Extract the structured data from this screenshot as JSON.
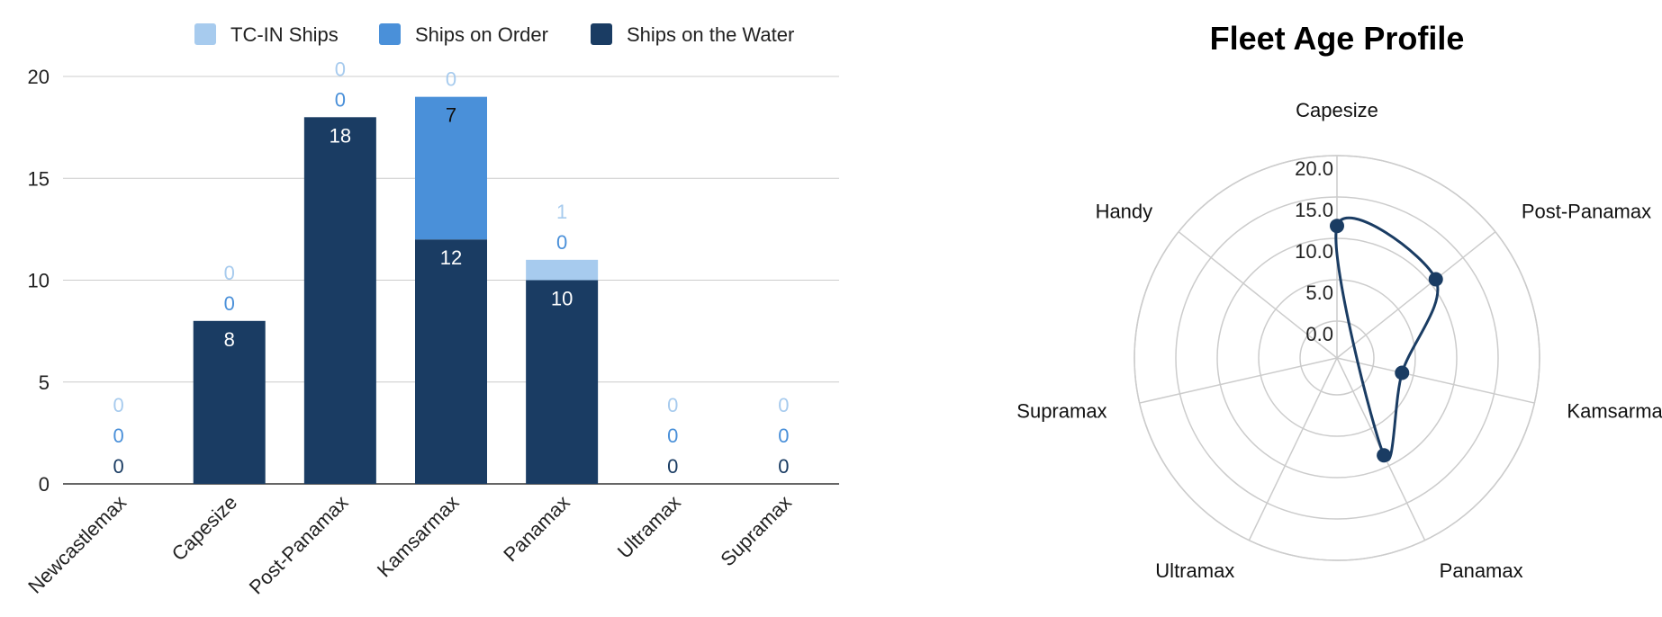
{
  "chart_data": [
    {
      "type": "bar",
      "stacked": true,
      "categories": [
        "Newcastlemax",
        "Capesize",
        "Post-Panamax",
        "Kamsarmax",
        "Panamax",
        "Ultramax",
        "Supramax"
      ],
      "series": [
        {
          "name": "Ships on the Water",
          "values": [
            0,
            8,
            18,
            12,
            10,
            0,
            0
          ],
          "color": "#1a3c63"
        },
        {
          "name": "Ships on Order",
          "values": [
            0,
            0,
            0,
            7,
            0,
            0,
            0
          ],
          "color": "#4a90d9"
        },
        {
          "name": "TC-IN Ships",
          "values": [
            0,
            0,
            0,
            0,
            1,
            0,
            0
          ],
          "color": "#a7cbee"
        }
      ],
      "legend_order": [
        "TC-IN Ships",
        "Ships on Order",
        "Ships on the Water"
      ],
      "legend_position": "top",
      "ylim": [
        0,
        20
      ],
      "yticks": [
        "0",
        "5",
        "10",
        "15",
        "20"
      ],
      "grid": true,
      "data_labels": true
    },
    {
      "type": "radar",
      "title": "Fleet Age Profile",
      "categories": [
        "Capesize",
        "Post-Panamax",
        "Kamsarmax",
        "Panamax",
        "Ultramax",
        "Supramax",
        "Handy"
      ],
      "series": [
        {
          "values": [
            11.5,
            10.8,
            3.6,
            8.6,
            null,
            null,
            null
          ],
          "color": "#1a3c63"
        }
      ],
      "rlim": [
        0,
        20
      ],
      "rticks": [
        "0.0",
        "5.0",
        "10.0",
        "15.0",
        "20.0"
      ],
      "grid": true,
      "curve": "smooth"
    }
  ]
}
